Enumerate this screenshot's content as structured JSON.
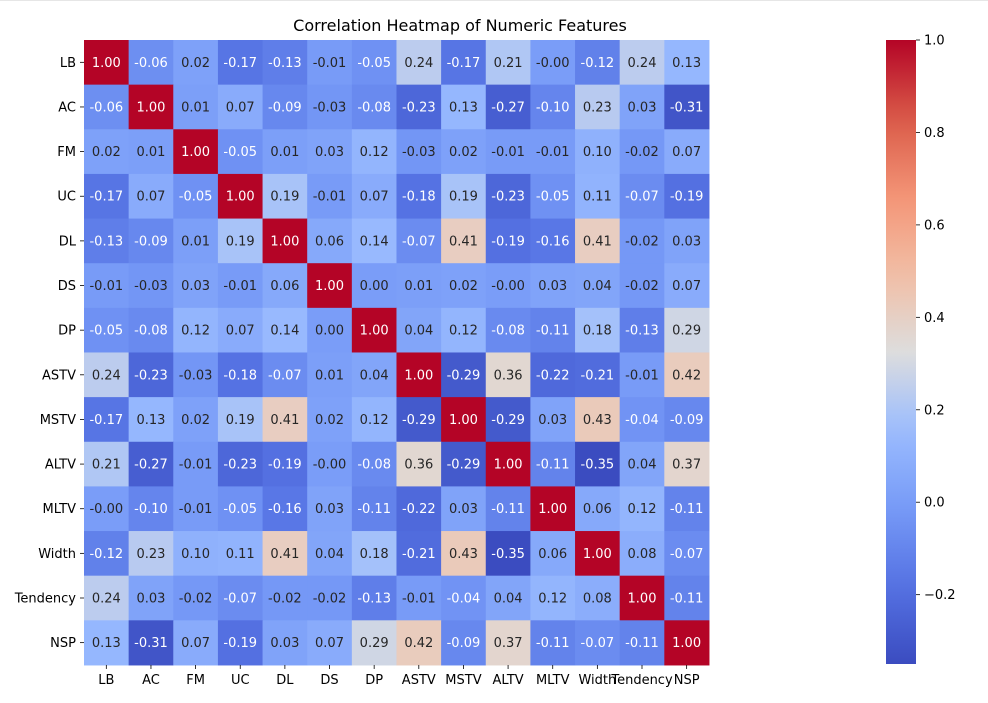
{
  "chart_data": {
    "type": "heatmap",
    "title": "Correlation Heatmap of Numeric Features",
    "xlabel": "",
    "ylabel": "",
    "rows": [
      "LB",
      "AC",
      "FM",
      "UC",
      "DL",
      "DS",
      "DP",
      "ASTV",
      "MSTV",
      "ALTV",
      "MLTV",
      "Width",
      "Tendency",
      "NSP"
    ],
    "columns": [
      "LB",
      "AC",
      "FM",
      "UC",
      "DL",
      "DS",
      "DP",
      "ASTV",
      "MSTV",
      "ALTV",
      "MLTV",
      "Width",
      "Tendency",
      "NSP"
    ],
    "values": [
      [
        "1.00",
        "-0.06",
        "0.02",
        "-0.17",
        "-0.13",
        "-0.01",
        "-0.05",
        "0.24",
        "-0.17",
        "0.21",
        "-0.00",
        "-0.12",
        "0.24",
        "0.13"
      ],
      [
        "-0.06",
        "1.00",
        "0.01",
        "0.07",
        "-0.09",
        "-0.03",
        "-0.08",
        "-0.23",
        "0.13",
        "-0.27",
        "-0.10",
        "0.23",
        "0.03",
        "-0.31"
      ],
      [
        "0.02",
        "0.01",
        "1.00",
        "-0.05",
        "0.01",
        "0.03",
        "0.12",
        "-0.03",
        "0.02",
        "-0.01",
        "-0.01",
        "0.10",
        "-0.02",
        "0.07"
      ],
      [
        "-0.17",
        "0.07",
        "-0.05",
        "1.00",
        "0.19",
        "-0.01",
        "0.07",
        "-0.18",
        "0.19",
        "-0.23",
        "-0.05",
        "0.11",
        "-0.07",
        "-0.19"
      ],
      [
        "-0.13",
        "-0.09",
        "0.01",
        "0.19",
        "1.00",
        "0.06",
        "0.14",
        "-0.07",
        "0.41",
        "-0.19",
        "-0.16",
        "0.41",
        "-0.02",
        "0.03"
      ],
      [
        "-0.01",
        "-0.03",
        "0.03",
        "-0.01",
        "0.06",
        "1.00",
        "0.00",
        "0.01",
        "0.02",
        "-0.00",
        "0.03",
        "0.04",
        "-0.02",
        "0.07"
      ],
      [
        "-0.05",
        "-0.08",
        "0.12",
        "0.07",
        "0.14",
        "0.00",
        "1.00",
        "0.04",
        "0.12",
        "-0.08",
        "-0.11",
        "0.18",
        "-0.13",
        "0.29"
      ],
      [
        "0.24",
        "-0.23",
        "-0.03",
        "-0.18",
        "-0.07",
        "0.01",
        "0.04",
        "1.00",
        "-0.29",
        "0.36",
        "-0.22",
        "-0.21",
        "-0.01",
        "0.42"
      ],
      [
        "-0.17",
        "0.13",
        "0.02",
        "0.19",
        "0.41",
        "0.02",
        "0.12",
        "-0.29",
        "1.00",
        "-0.29",
        "0.03",
        "0.43",
        "-0.04",
        "-0.09"
      ],
      [
        "0.21",
        "-0.27",
        "-0.01",
        "-0.23",
        "-0.19",
        "-0.00",
        "-0.08",
        "0.36",
        "-0.29",
        "1.00",
        "-0.11",
        "-0.35",
        "0.04",
        "0.37"
      ],
      [
        "-0.00",
        "-0.10",
        "-0.01",
        "-0.05",
        "-0.16",
        "0.03",
        "-0.11",
        "-0.22",
        "0.03",
        "-0.11",
        "1.00",
        "0.06",
        "0.12",
        "-0.11"
      ],
      [
        "-0.12",
        "0.23",
        "0.10",
        "0.11",
        "0.41",
        "0.04",
        "0.18",
        "-0.21",
        "0.43",
        "-0.35",
        "0.06",
        "1.00",
        "0.08",
        "-0.07"
      ],
      [
        "0.24",
        "0.03",
        "-0.02",
        "-0.07",
        "-0.02",
        "-0.02",
        "-0.13",
        "-0.01",
        "-0.04",
        "0.04",
        "0.12",
        "0.08",
        "1.00",
        "-0.11"
      ],
      [
        "0.13",
        "-0.31",
        "0.07",
        "-0.19",
        "0.03",
        "0.07",
        "0.29",
        "0.42",
        "-0.09",
        "0.37",
        "-0.11",
        "-0.07",
        "-0.11",
        "1.00"
      ]
    ],
    "colorbar": {
      "range": [
        -0.35,
        1.0
      ],
      "ticks": [
        "1.0",
        "0.8",
        "0.6",
        "0.4",
        "0.2",
        "0.0",
        "−0.2"
      ],
      "tick_values": [
        1.0,
        0.8,
        0.6,
        0.4,
        0.2,
        0.0,
        -0.2
      ],
      "colormap": "coolwarm"
    },
    "colors": {
      "low": "#3b4cc0",
      "mid": "#dddcdc",
      "high": "#b40426"
    }
  }
}
